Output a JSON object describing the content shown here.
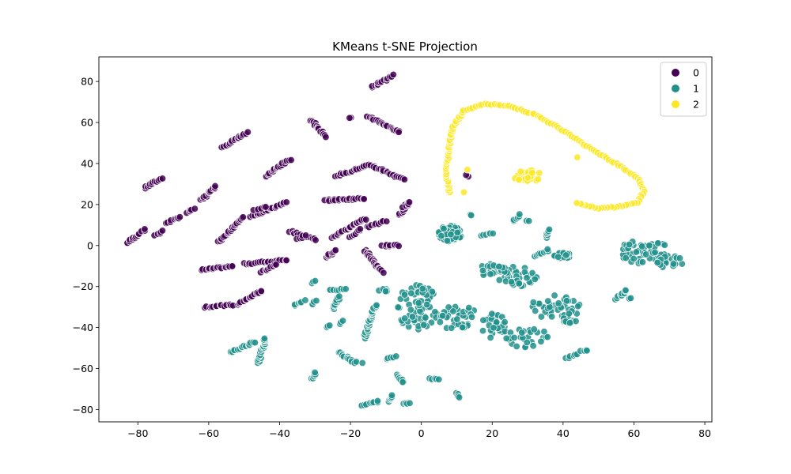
{
  "chart_data": {
    "type": "scatter",
    "title": "KMeans t-SNE Projection",
    "xlabel": "",
    "ylabel": "",
    "xlim": [
      -91,
      82
    ],
    "ylim": [
      -86,
      92
    ],
    "x_ticks": [
      -80,
      -60,
      -40,
      -20,
      0,
      20,
      40,
      60,
      80
    ],
    "y_ticks": [
      -80,
      -60,
      -40,
      -20,
      0,
      20,
      40,
      60,
      80
    ],
    "grid": false,
    "legend_position": "top-right",
    "series": [
      {
        "name": "0",
        "color": "#440154",
        "segments": [
          [
            -83,
            1,
            -78,
            8
          ],
          [
            -78,
            28,
            -73,
            33
          ],
          [
            -75,
            5,
            -73,
            7
          ],
          [
            -72,
            11,
            -68,
            14
          ],
          [
            -66,
            16,
            -64,
            18
          ],
          [
            -62,
            22,
            -58,
            29
          ],
          [
            -56,
            48,
            -49,
            55
          ],
          [
            -62,
            -12,
            -53,
            -10
          ],
          [
            -50,
            -9,
            -38,
            -7
          ],
          [
            -61,
            -30,
            -53,
            -29
          ],
          [
            -52,
            -29,
            -45,
            -22
          ],
          [
            -45,
            -13,
            -41,
            -9
          ],
          [
            -57,
            2,
            -50,
            14
          ],
          [
            -48,
            14,
            -38,
            21
          ],
          [
            -44,
            34,
            -37,
            42
          ],
          [
            -37,
            7,
            -30,
            3
          ],
          [
            -31,
            61,
            -27,
            53
          ],
          [
            -27,
            -6,
            -24,
            -2
          ],
          [
            -25,
            4,
            -16,
            13
          ],
          [
            -27,
            22,
            -16,
            23
          ],
          [
            -24,
            34,
            -15,
            39
          ],
          [
            -20,
            62,
            -20,
            62
          ],
          [
            -15,
            63,
            -6,
            55
          ],
          [
            -16,
            -2,
            -11,
            -13
          ],
          [
            -14,
            77,
            -8,
            83
          ],
          [
            -14,
            39,
            -5,
            32
          ],
          [
            -11,
            0,
            -6,
            0
          ],
          [
            -6,
            15,
            -4,
            21
          ],
          [
            13,
            34,
            13,
            34
          ],
          [
            -15,
            9,
            -10,
            12
          ],
          [
            -20,
            4,
            -17,
            8
          ],
          [
            -5,
            19,
            -3,
            21
          ],
          [
            -35,
            3,
            -33,
            5
          ],
          [
            -47,
            17,
            -44,
            19
          ]
        ],
        "clusters": []
      },
      {
        "name": "1",
        "color": "#21918c",
        "segments": [
          [
            -54,
            -52,
            -47,
            -47
          ],
          [
            -46,
            -57,
            -44,
            -45
          ],
          [
            -36,
            -29,
            -33,
            -27
          ],
          [
            -31,
            -18,
            -30,
            -17
          ],
          [
            -31,
            -29,
            -30,
            -27
          ],
          [
            -31,
            -65,
            -30,
            -62
          ],
          [
            -26,
            -22,
            -21,
            -21
          ],
          [
            -27,
            -40,
            -26,
            -39
          ],
          [
            -25,
            -31,
            -23,
            -25
          ],
          [
            -23,
            -38,
            -22,
            -37
          ],
          [
            -23,
            -52,
            -19,
            -57
          ],
          [
            -18,
            -57,
            -17,
            -57
          ],
          [
            -17,
            -78,
            -12,
            -76
          ],
          [
            -16,
            -45,
            -13,
            -29
          ],
          [
            -10,
            -55,
            -7,
            -54
          ],
          [
            -9,
            -76,
            -8,
            -73
          ],
          [
            -7,
            -63,
            -5,
            -67
          ],
          [
            -5,
            -77,
            -3,
            -77
          ],
          [
            10,
            -72,
            11,
            -74
          ],
          [
            2,
            -65,
            5,
            -65
          ],
          [
            14,
            15,
            14,
            15
          ],
          [
            17,
            5,
            20,
            6
          ],
          [
            26,
            12,
            28,
            15
          ],
          [
            30,
            12,
            30,
            12
          ],
          [
            35,
            4,
            36,
            8
          ],
          [
            55,
            -26,
            58,
            -22
          ],
          [
            59,
            -26,
            59,
            -26
          ],
          [
            41,
            -55,
            44,
            -53
          ],
          [
            45,
            -51,
            47,
            -51
          ],
          [
            32,
            -5,
            36,
            -2
          ]
        ],
        "clusters": [
          [
            8,
            6,
            3.5,
            4,
            60
          ],
          [
            -1,
            -30,
            6,
            11,
            70
          ],
          [
            10,
            -35,
            6,
            6,
            40
          ],
          [
            20,
            -40,
            4,
            8,
            30
          ],
          [
            27,
            -15,
            6,
            5,
            45
          ],
          [
            38,
            -30,
            7,
            6,
            45
          ],
          [
            30,
            -45,
            6,
            5,
            30
          ],
          [
            20,
            -12,
            4,
            3,
            20
          ],
          [
            40,
            -5,
            2.5,
            1.5,
            22
          ],
          [
            63,
            -3,
            7,
            6,
            55
          ],
          [
            70,
            -8,
            4,
            3,
            22
          ],
          [
            43,
            -37,
            3,
            1,
            8
          ],
          [
            -11,
            -22,
            2,
            1,
            6
          ]
        ]
      },
      {
        "name": "2",
        "color": "#fde725",
        "segments": [],
        "path": [
          [
            8,
            26
          ],
          [
            7,
            35
          ],
          [
            8,
            50
          ],
          [
            9,
            58
          ],
          [
            12,
            66
          ],
          [
            18,
            69
          ],
          [
            25,
            68
          ],
          [
            32,
            64
          ],
          [
            40,
            56
          ],
          [
            48,
            47
          ],
          [
            55,
            40
          ],
          [
            61,
            33
          ],
          [
            63,
            27
          ],
          [
            61,
            21
          ],
          [
            56,
            19
          ],
          [
            50,
            18
          ],
          [
            43,
            21
          ]
        ],
        "clusters": [
          [
            30,
            34,
            4,
            3,
            25
          ]
        ],
        "extra": [
          [
            13,
            37
          ],
          [
            12,
            26
          ],
          [
            44,
            43
          ]
        ]
      }
    ]
  }
}
